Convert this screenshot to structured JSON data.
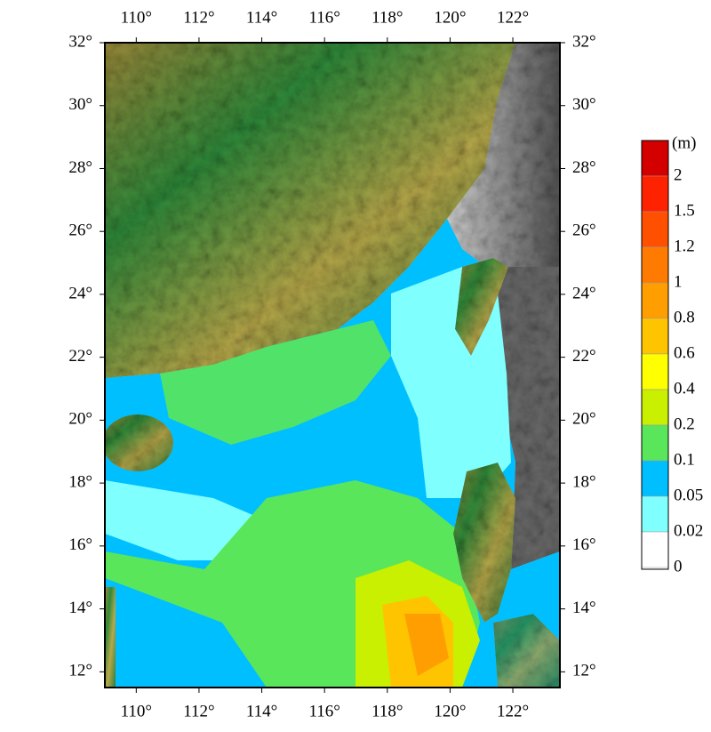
{
  "map": {
    "xlim": [
      109,
      123.5
    ],
    "ylim": [
      11.5,
      32
    ],
    "xticks": [
      {
        "value": 110,
        "label": "110°"
      },
      {
        "value": 112,
        "label": "112°"
      },
      {
        "value": 114,
        "label": "114°"
      },
      {
        "value": 116,
        "label": "116°"
      },
      {
        "value": 118,
        "label": "118°"
      },
      {
        "value": 120,
        "label": "120°"
      },
      {
        "value": 122,
        "label": "122°"
      }
    ],
    "yticks": [
      {
        "value": 12,
        "label": "12°"
      },
      {
        "value": 14,
        "label": "14°"
      },
      {
        "value": 16,
        "label": "16°"
      },
      {
        "value": 18,
        "label": "18°"
      },
      {
        "value": 20,
        "label": "20°"
      },
      {
        "value": 22,
        "label": "22°"
      },
      {
        "value": 24,
        "label": "24°"
      },
      {
        "value": 26,
        "label": "26°"
      },
      {
        "value": 28,
        "label": "28°"
      },
      {
        "value": 30,
        "label": "30°"
      },
      {
        "value": 32,
        "label": "32°"
      }
    ]
  },
  "legend": {
    "unit": "(m)",
    "labels": [
      2,
      1.5,
      1.2,
      1,
      0.8,
      0.6,
      0.4,
      0.2,
      0.1,
      0.05,
      0.02,
      0
    ],
    "colors": [
      "#d40000",
      "#ff2200",
      "#ff5000",
      "#ff7a00",
      "#ff9e00",
      "#ffc400",
      "#ffff00",
      "#c8f000",
      "#5ae65a",
      "#00bfff",
      "#80ffff",
      "#ffffff"
    ]
  }
}
